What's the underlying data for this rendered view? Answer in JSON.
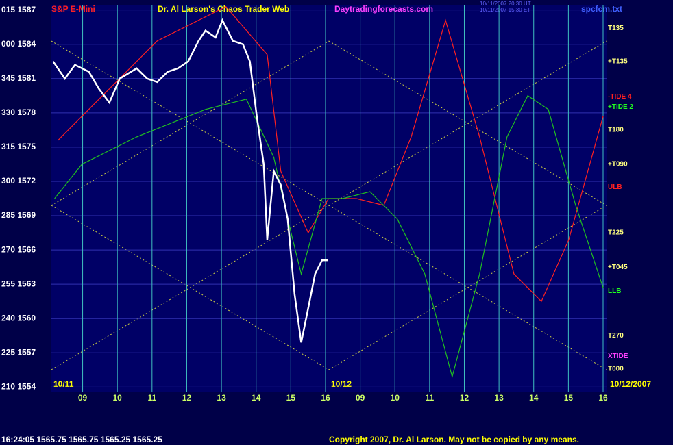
{
  "chart_data": {
    "type": "line",
    "title": "Dr. Al Larson's Chaos Trader Web",
    "instrument": "S&P E-Mini",
    "website": "Daytradingforecasts.com",
    "file": "spcfcm.txt",
    "timestamps": [
      "10/11/2007 20:30 UT",
      "10/11/2007 15:30 ET"
    ],
    "day_labels": [
      "10/11",
      "10/12",
      "10/12/2007"
    ],
    "footer_quote": "16:24:05  1565.75 1565.75 1565.25 1565.25",
    "copyright": "Copyright 2007, Dr. Al Larson. May not be copied by any means.",
    "xlim": [
      8.1,
      24
    ],
    "xticks": [
      {
        "value": 9,
        "label": "09"
      },
      10,
      11,
      12,
      13,
      14,
      15,
      16,
      {
        "value": 17,
        "label": "09"
      },
      {
        "value": 18,
        "label": "10"
      },
      {
        "value": 19,
        "label": "11"
      },
      {
        "value": 20,
        "label": "12"
      },
      {
        "value": 21,
        "label": "13"
      },
      {
        "value": 22,
        "label": "14"
      },
      {
        "value": 23,
        "label": "15"
      },
      {
        "value": 24,
        "label": "16"
      }
    ],
    "ylim": [
      1553.6,
      1587.4
    ],
    "yticks": [
      {
        "value": 1587,
        "label": "015 1587"
      },
      {
        "value": 1584,
        "label": "000 1584"
      },
      {
        "value": 1581,
        "label": "345 1581"
      },
      {
        "value": 1578,
        "label": "330 1578"
      },
      {
        "value": 1575,
        "label": "315 1575"
      },
      {
        "value": 1572,
        "label": "300 1572"
      },
      {
        "value": 1569,
        "label": "285 1569"
      },
      {
        "value": 1566,
        "label": "270 1566"
      },
      {
        "value": 1563,
        "label": "255 1563"
      },
      {
        "value": 1560,
        "label": "240 1560"
      },
      {
        "value": 1557,
        "label": "225 1557"
      },
      {
        "value": 1554,
        "label": "210 1554"
      }
    ],
    "grid": true,
    "series": [
      {
        "color": "#ff2020",
        "x": [
          8.29,
          11.15,
          13.13,
          14.32,
          14.71,
          15.5,
          16.09,
          16.89,
          17.68,
          18.47,
          19.46,
          20.44,
          21.43,
          22.22,
          23.01,
          24.0
        ],
        "values": [
          1575.6,
          1584.3,
          1587.3,
          1583.1,
          1572.9,
          1567.5,
          1570.5,
          1570.5,
          1569.9,
          1575.9,
          1586.1,
          1575.9,
          1563.9,
          1561.5,
          1566.9,
          1577.7
        ]
      },
      {
        "color": "#20c020",
        "x": [
          8.19,
          8.98,
          10.56,
          12.54,
          13.72,
          14.51,
          14.91,
          15.3,
          15.9,
          16.49,
          17.28,
          18.07,
          18.86,
          19.65,
          20.44,
          21.23,
          21.83,
          22.42,
          23.21,
          24.0
        ],
        "values": [
          1570.5,
          1573.5,
          1575.9,
          1578.3,
          1579.2,
          1574.1,
          1568.7,
          1563.9,
          1570.5,
          1570.5,
          1571.1,
          1568.7,
          1563.9,
          1554.9,
          1563.9,
          1575.9,
          1579.5,
          1578.3,
          1569.9,
          1562.7
        ]
      },
      {
        "color": "#ffffff",
        "x": [
          8.15,
          8.49,
          8.78,
          9.18,
          9.47,
          9.77,
          10.07,
          10.56,
          10.86,
          11.15,
          11.45,
          11.75,
          12.04,
          12.34,
          12.54,
          12.83,
          13.03,
          13.33,
          13.62,
          13.82,
          14.02,
          14.22,
          14.32,
          14.51,
          14.71,
          14.91,
          15.11,
          15.3,
          15.5,
          15.7,
          15.9,
          16.06
        ],
        "values": [
          1582.5,
          1581.0,
          1582.2,
          1581.6,
          1580.1,
          1578.9,
          1581.0,
          1581.9,
          1581.0,
          1580.7,
          1581.6,
          1581.9,
          1582.5,
          1584.3,
          1585.2,
          1584.6,
          1586.1,
          1584.3,
          1584.0,
          1582.5,
          1577.7,
          1573.5,
          1566.9,
          1572.9,
          1571.7,
          1568.7,
          1562.1,
          1557.9,
          1560.9,
          1563.9,
          1565.1,
          1565.1
        ]
      }
    ],
    "annotations": [
      {
        "text": "T135",
        "y": 1585.4,
        "color": "#ffff80"
      },
      {
        "text": "+T135",
        "y": 1582.5,
        "color": "#ffff80"
      },
      {
        "text": "-TIDE 4",
        "y": 1579.4,
        "color": "#ff2020"
      },
      {
        "text": "+TIDE 2",
        "y": 1578.5,
        "color": "#20ff20"
      },
      {
        "text": "T180",
        "y": 1576.5,
        "color": "#ffff80"
      },
      {
        "text": "+T090",
        "y": 1573.5,
        "color": "#ffff80"
      },
      {
        "text": "ULB",
        "y": 1571.5,
        "color": "#ff2020"
      },
      {
        "text": "T225",
        "y": 1567.5,
        "color": "#ffff80"
      },
      {
        "text": "+T045",
        "y": 1564.5,
        "color": "#ffff80"
      },
      {
        "text": "LLB",
        "y": 1562.4,
        "color": "#20ff20"
      },
      {
        "text": "T270",
        "y": 1558.5,
        "color": "#ffff80"
      },
      {
        "text": "XTIDE",
        "y": 1556.7,
        "color": "#ff40ff"
      },
      {
        "text": "T000",
        "y": 1555.6,
        "color": "#ffff80"
      }
    ]
  }
}
